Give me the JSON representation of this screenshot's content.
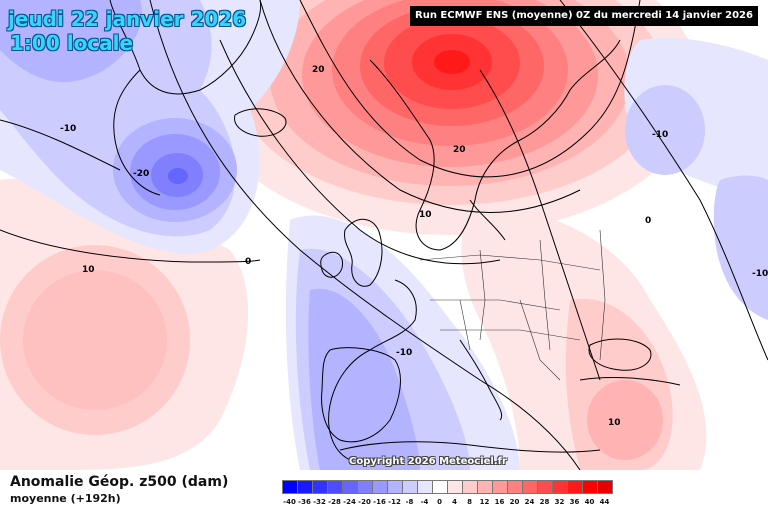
{
  "header": {
    "date": "jeudi 22 janvier 2026",
    "time": "1:00 locale",
    "run": "Run ECMWF ENS (moyenne) 0Z du mercredi 14 janvier 2026"
  },
  "copyright": "Copyright 2026 Meteociel.fr",
  "legend": {
    "parameter": "Anomalie Géop. z500 (dam)",
    "subtitle": "moyenne   (+192h)",
    "scale": [
      {
        "label": "-40",
        "color": "#0000ff"
      },
      {
        "label": "-36",
        "color": "#1a1aff"
      },
      {
        "label": "-32",
        "color": "#3333ff"
      },
      {
        "label": "-28",
        "color": "#4d4dff"
      },
      {
        "label": "-24",
        "color": "#6666ff"
      },
      {
        "label": "-20",
        "color": "#8080ff"
      },
      {
        "label": "-16",
        "color": "#9999ff"
      },
      {
        "label": "-12",
        "color": "#b3b3ff"
      },
      {
        "label": "-8",
        "color": "#ccccff"
      },
      {
        "label": "-4",
        "color": "#e6e6ff"
      },
      {
        "label": "0",
        "color": "#ffffff"
      },
      {
        "label": "4",
        "color": "#ffe6e6"
      },
      {
        "label": "8",
        "color": "#ffcccc"
      },
      {
        "label": "12",
        "color": "#ffb3b3"
      },
      {
        "label": "16",
        "color": "#ff9999"
      },
      {
        "label": "20",
        "color": "#ff8080"
      },
      {
        "label": "24",
        "color": "#ff6666"
      },
      {
        "label": "28",
        "color": "#ff4d4d"
      },
      {
        "label": "32",
        "color": "#ff3333"
      },
      {
        "label": "36",
        "color": "#ff1a1a"
      },
      {
        "label": "40",
        "color": "#ff0000"
      },
      {
        "label": "44",
        "color": "#e60000"
      }
    ]
  },
  "contour_labels": [
    "-10",
    "-20",
    "20",
    "20",
    "10",
    "10",
    "0",
    "-10",
    "-10",
    "0",
    "-10",
    "10"
  ]
}
